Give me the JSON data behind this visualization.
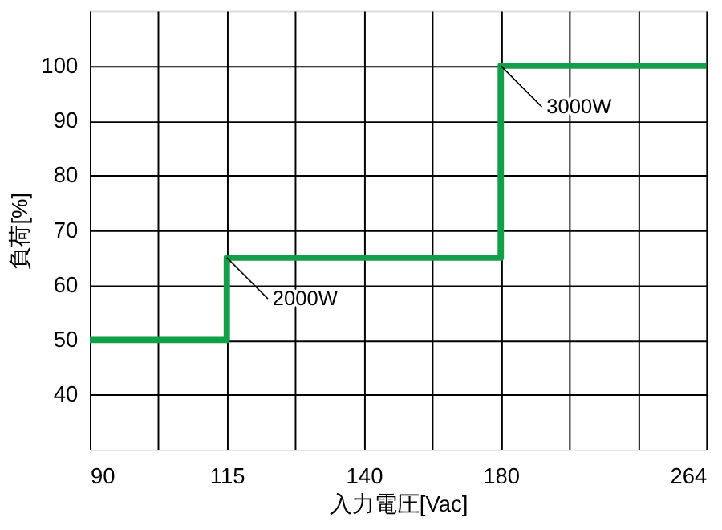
{
  "chart_data": {
    "type": "step",
    "xlabel": "入力電圧[Vac]",
    "ylabel": "負荷[%]",
    "categories": [
      "90",
      null,
      "115",
      null,
      "140",
      null,
      "180",
      null,
      null,
      "264"
    ],
    "series": [
      {
        "color": "#119f48",
        "values": [
          50,
          50,
          65,
          65,
          65,
          65,
          100,
          100,
          100,
          100
        ]
      }
    ],
    "ylim": [
      30,
      110
    ],
    "yticks": [
      40,
      50,
      60,
      70,
      80,
      90,
      100
    ],
    "grid": true,
    "legend": false,
    "annotations": [
      {
        "text": "2000W",
        "x": "115",
        "y": 65
      },
      {
        "text": "3000W",
        "x": "180",
        "y": 100
      }
    ]
  }
}
